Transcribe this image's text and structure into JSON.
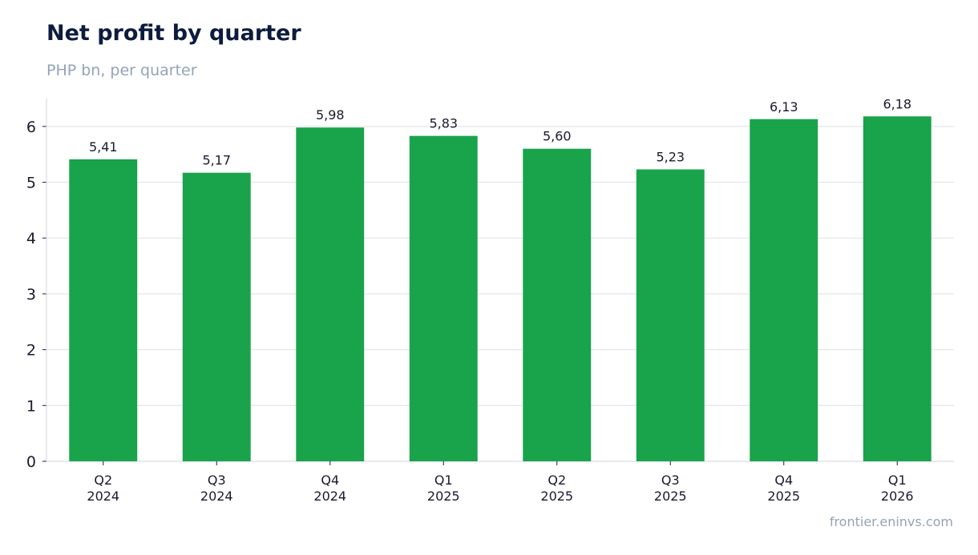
{
  "title": "Net profit by quarter",
  "subtitle": "PHP bn, per quarter",
  "source": "frontier.eninvs.com",
  "colors": {
    "bar": "#19a34a",
    "grid": "#e5e7eb",
    "axis": "#d1d5db",
    "text": "#1a1a2e"
  },
  "chart_data": {
    "type": "bar",
    "title": "Net profit by quarter",
    "subtitle": "PHP bn, per quarter",
    "xlabel": "",
    "ylabel": "",
    "categories": [
      [
        "Q2",
        "2024"
      ],
      [
        "Q3",
        "2024"
      ],
      [
        "Q4",
        "2024"
      ],
      [
        "Q1",
        "2025"
      ],
      [
        "Q2",
        "2025"
      ],
      [
        "Q3",
        "2025"
      ],
      [
        "Q4",
        "2025"
      ],
      [
        "Q1",
        "2026"
      ]
    ],
    "values": [
      5.41,
      5.17,
      5.98,
      5.83,
      5.6,
      5.23,
      6.13,
      6.18
    ],
    "value_labels": [
      "5,41",
      "5,17",
      "5,98",
      "5,83",
      "5,60",
      "5,23",
      "6,13",
      "6,18"
    ],
    "yticks": [
      0,
      1,
      2,
      3,
      4,
      5,
      6
    ],
    "ylim": [
      0,
      6.5
    ],
    "grid": true,
    "legend": "none"
  }
}
